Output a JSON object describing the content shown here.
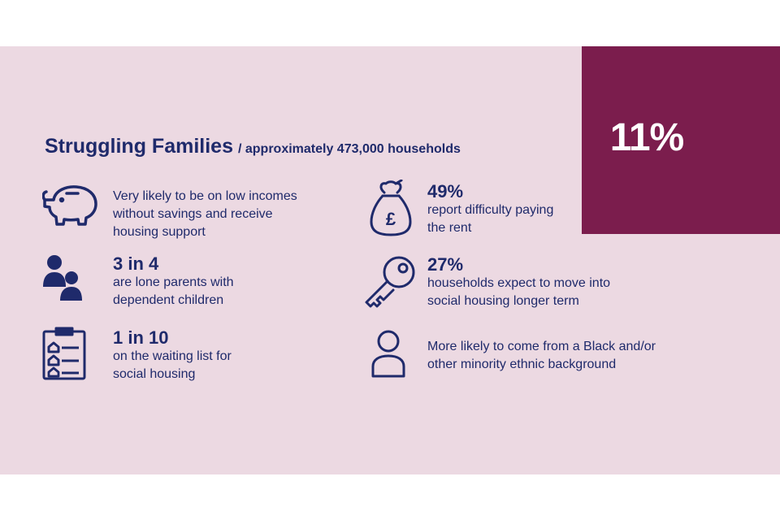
{
  "header": {
    "title": "Struggling Families",
    "subtitle": "/ approximately 473,000 households",
    "percentage": "11%"
  },
  "colors": {
    "panel_bg": "#ecd9e2",
    "accent": "#7b1d4d",
    "text": "#1f2a6b"
  },
  "facts": [
    {
      "icon": "piggy-bank-icon",
      "stat": "",
      "text": "Very likely to be on low incomes\nwithout savings and receive\nhousing support"
    },
    {
      "icon": "parent-child-icon",
      "stat": "3 in 4",
      "text": "are lone parents with\ndependent children"
    },
    {
      "icon": "waiting-list-clipboard-icon",
      "stat": "1 in 10",
      "text": "on the waiting list for\nsocial housing"
    },
    {
      "icon": "money-bag-icon",
      "stat": "49%",
      "text": "report difficulty paying\nthe rent"
    },
    {
      "icon": "key-icon",
      "stat": "27%",
      "text": "households expect to move into\nsocial housing longer term"
    },
    {
      "icon": "person-icon",
      "stat": "",
      "text": "More likely to come from a Black and/or\nother minority ethnic background"
    }
  ]
}
